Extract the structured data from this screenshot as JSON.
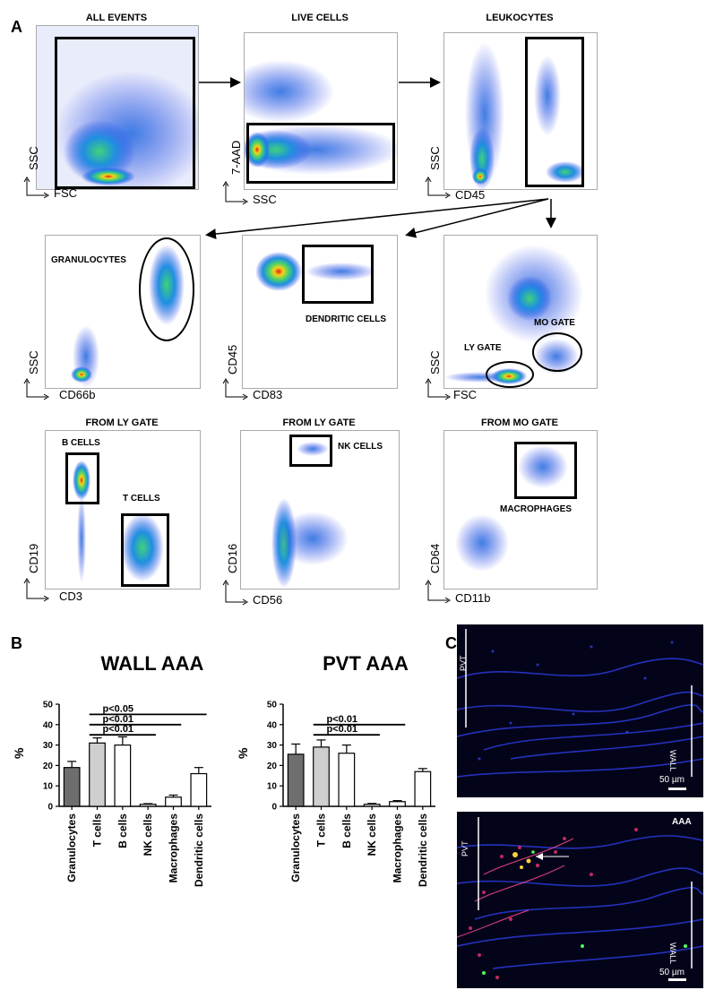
{
  "panel_a": {
    "letter": "A",
    "row1": [
      {
        "title": "ALL EVENTS",
        "xaxis": "FSC",
        "yaxis": "SSC"
      },
      {
        "title": "LIVE CELLS",
        "xaxis": "SSC",
        "yaxis": "7-AAD"
      },
      {
        "title": "LEUKOCYTES",
        "xaxis": "CD45",
        "yaxis": "SSC"
      }
    ],
    "row2": [
      {
        "xaxis": "CD66b",
        "yaxis": "SSC",
        "gate": "GRANULOCYTES"
      },
      {
        "xaxis": "CD83",
        "yaxis": "CD45",
        "gate": "DENDRITIC CELLS"
      },
      {
        "xaxis": "FSC",
        "yaxis": "SSC",
        "gate1": "MO GATE",
        "gate2": "LY GATE"
      }
    ],
    "row3": [
      {
        "title": "FROM LY GATE",
        "xaxis": "CD3",
        "yaxis": "CD19",
        "gate1": "B CELLS",
        "gate2": "T CELLS"
      },
      {
        "title": "FROM LY GATE",
        "xaxis": "CD56",
        "yaxis": "CD16",
        "gate": "NK CELLS"
      },
      {
        "title": "FROM MO GATE",
        "xaxis": "CD11b",
        "yaxis": "CD64",
        "gate": "MACROPHAGES"
      }
    ]
  },
  "panel_b": {
    "letter": "B"
  },
  "panel_c": {
    "letter": "C",
    "top": {
      "pvt": "PVT",
      "wall": "WALL",
      "scale": "50 µm"
    },
    "bottom": {
      "pvt": "PVT",
      "wall": "WALL",
      "scale": "50 µm",
      "tag": "AAA"
    }
  },
  "colors": {
    "dark_gray": "#6e6e6e",
    "light_gray": "#cfcfcf",
    "white": "#ffffff",
    "nuclei_blue": "#2a3ad8"
  },
  "chart_data": [
    {
      "type": "bar",
      "title": "WALL AAA",
      "ylabel": "%",
      "ylim": [
        0,
        50
      ],
      "yticks": [
        0,
        10,
        20,
        30,
        40,
        50
      ],
      "categories": [
        "Granulocytes",
        "T cells",
        "B cells",
        "NK cells",
        "Macrophages",
        "Dendritic cells"
      ],
      "values": [
        19,
        31,
        30,
        1,
        4.5,
        16
      ],
      "errors": [
        3,
        2.5,
        4,
        0.3,
        1,
        3
      ],
      "fills": [
        "#6e6e6e",
        "#cfcfcf",
        "#ffffff",
        "#ffffff",
        "#ffffff",
        "#ffffff"
      ],
      "annotations": [
        {
          "text": "p<0.05",
          "from": "T cells",
          "to": "Dendritic cells",
          "level": 45
        },
        {
          "text": "p<0.01",
          "from": "T cells",
          "to": "Macrophages",
          "level": 40
        },
        {
          "text": "p<0.01",
          "from": "T cells",
          "to": "NK cells",
          "level": 35
        }
      ]
    },
    {
      "type": "bar",
      "title": "PVT AAA",
      "ylabel": "%",
      "ylim": [
        0,
        50
      ],
      "yticks": [
        0,
        10,
        20,
        30,
        40,
        50
      ],
      "categories": [
        "Granulocytes",
        "T cells",
        "B cells",
        "NK cells",
        "Macrophages",
        "Dendritic cells"
      ],
      "values": [
        25.5,
        29,
        26,
        1,
        2.3,
        17
      ],
      "errors": [
        5,
        3.5,
        4,
        0.4,
        0.5,
        1.5
      ],
      "fills": [
        "#6e6e6e",
        "#cfcfcf",
        "#ffffff",
        "#ffffff",
        "#ffffff",
        "#ffffff"
      ],
      "annotations": [
        {
          "text": "p<0.01",
          "from": "T cells",
          "to": "Macrophages",
          "level": 40
        },
        {
          "text": "p<0.01",
          "from": "T cells",
          "to": "NK cells",
          "level": 35
        }
      ]
    }
  ]
}
